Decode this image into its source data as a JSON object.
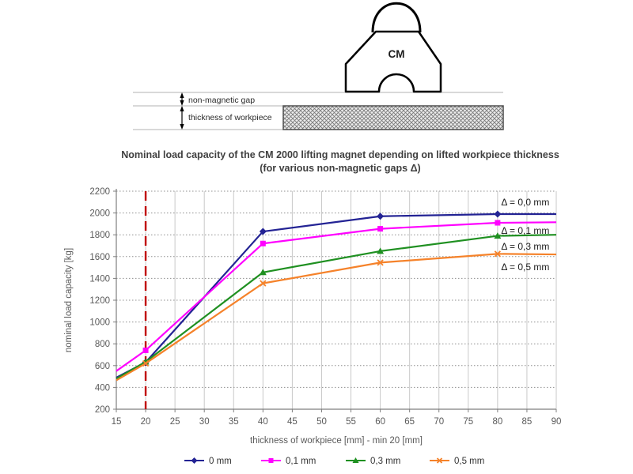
{
  "diagram": {
    "magnet_label": "CM",
    "gap_label": "non-magnetic gap",
    "thickness_label": "thickness of workpiece"
  },
  "title": {
    "line1": "Nominal load capacity of the CM 2000 lifting magnet depending on lifted workpiece thickness",
    "line2": "(for various non-magnetic gaps Δ)"
  },
  "chart_data": {
    "type": "line",
    "x": [
      15,
      20,
      40,
      60,
      80,
      90
    ],
    "marker_x": [
      20,
      40,
      60,
      80
    ],
    "series": [
      {
        "name": "0 mm",
        "color": "#232394",
        "marker": "diamond",
        "values": [
          490,
          630,
          1830,
          1970,
          1990,
          1990
        ]
      },
      {
        "name": "0,1 mm",
        "color": "#FF00FF",
        "marker": "square",
        "values": [
          550,
          740,
          1720,
          1855,
          1910,
          1915
        ]
      },
      {
        "name": "0,3 mm",
        "color": "#1F9021",
        "marker": "triangle",
        "values": [
          480,
          635,
          1455,
          1650,
          1790,
          1800
        ]
      },
      {
        "name": "0,5 mm",
        "color": "#F5822A",
        "marker": "x",
        "values": [
          465,
          620,
          1355,
          1545,
          1625,
          1620
        ]
      }
    ],
    "annotations": [
      {
        "text": "Δ = 0,0 mm",
        "x_mm": 80.6,
        "y_kg": 2070
      },
      {
        "text": "Δ = 0,1 mm",
        "x_mm": 80.6,
        "y_kg": 1810
      },
      {
        "text": "Δ = 0,3 mm",
        "x_mm": 80.6,
        "y_kg": 1665
      },
      {
        "text": "Δ = 0,5 mm",
        "x_mm": 80.6,
        "y_kg": 1475
      }
    ],
    "xlabel": "thickness of workpiece [mm] - min 20 [mm]",
    "ylabel": "nominal load capacity [kg]",
    "xlim": [
      15,
      90
    ],
    "xtick_step": 5,
    "ylim": [
      200,
      2200
    ],
    "ytick_step": 200,
    "grid": "on",
    "legend_position": "bottom",
    "ref_line": {
      "x": 20,
      "color": "#C00000",
      "style": "dashed"
    }
  }
}
